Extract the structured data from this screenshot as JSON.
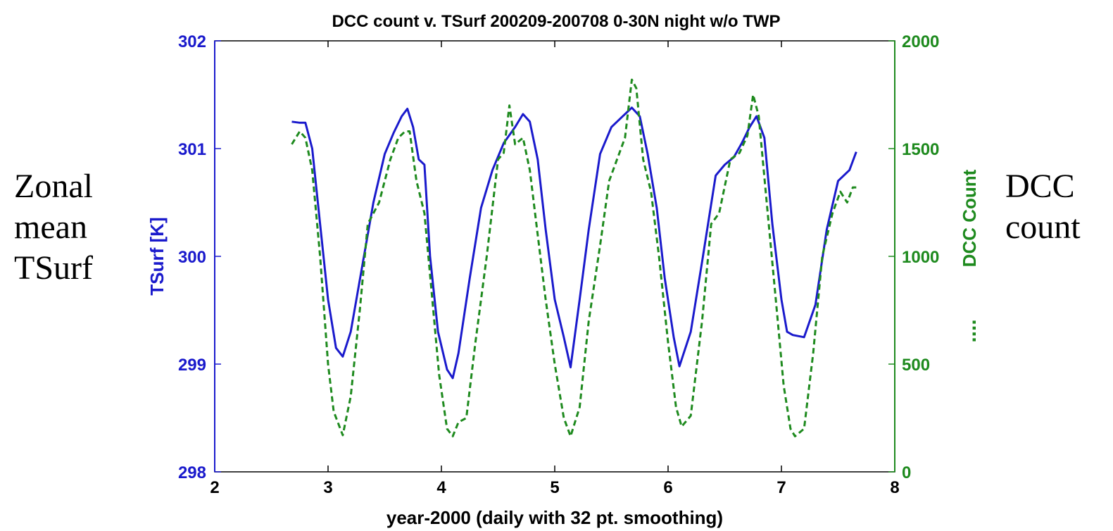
{
  "side_notes": {
    "left": [
      "Zonal",
      "mean",
      "TSurf"
    ],
    "right": [
      "DCC",
      "count"
    ]
  },
  "chart_data": {
    "type": "line",
    "title": "DCC count v. TSurf 200209-200708 0-30N night w/o TWP",
    "xlabel": "year-2000 (daily with 32 pt. smoothing)",
    "ylabel_left": "TSurf [K]",
    "ylabel_right": "DCC Count",
    "ylabel_right_marker": "....",
    "xlim": [
      2,
      8
    ],
    "ylim_left": [
      298,
      302
    ],
    "ylim_right": [
      0,
      2000
    ],
    "xticks": [
      2,
      3,
      4,
      5,
      6,
      7,
      8
    ],
    "yticks_left": [
      298,
      299,
      300,
      301,
      302
    ],
    "yticks_right": [
      0,
      500,
      1000,
      1500,
      2000
    ],
    "grid": false,
    "colors": {
      "tsurf": "#1a1acc",
      "dcc": "#1e8a1e",
      "left_axis": "#1a1acc",
      "right_axis": "#1e8a1e"
    },
    "series": [
      {
        "axis": "left",
        "style": "solid",
        "x": [
          2.68,
          2.75,
          2.8,
          2.86,
          2.93,
          3.0,
          3.07,
          3.13,
          3.2,
          3.3,
          3.4,
          3.5,
          3.58,
          3.65,
          3.7,
          3.75,
          3.8,
          3.85,
          3.9,
          3.97,
          4.05,
          4.1,
          4.15,
          4.25,
          4.35,
          4.45,
          4.55,
          4.65,
          4.72,
          4.78,
          4.85,
          4.92,
          5.0,
          5.08,
          5.14,
          5.22,
          5.3,
          5.4,
          5.5,
          5.6,
          5.68,
          5.75,
          5.82,
          5.9,
          5.97,
          6.05,
          6.1,
          6.2,
          6.3,
          6.42,
          6.5,
          6.58,
          6.65,
          6.72,
          6.78,
          6.85,
          6.92,
          7.0,
          7.05,
          7.1,
          7.2,
          7.3,
          7.4,
          7.5,
          7.6,
          7.66
        ],
        "values": [
          301.25,
          301.24,
          301.24,
          301.0,
          300.3,
          299.6,
          299.15,
          299.07,
          299.3,
          299.9,
          300.5,
          300.95,
          301.15,
          301.3,
          301.37,
          301.2,
          300.9,
          300.85,
          300.0,
          299.3,
          298.95,
          298.87,
          299.1,
          299.8,
          300.45,
          300.8,
          301.05,
          301.2,
          301.32,
          301.25,
          300.9,
          300.25,
          299.6,
          299.25,
          298.97,
          299.6,
          300.25,
          300.95,
          301.2,
          301.3,
          301.38,
          301.3,
          300.95,
          300.45,
          299.8,
          299.25,
          298.98,
          299.3,
          299.95,
          300.75,
          300.85,
          300.92,
          301.05,
          301.2,
          301.3,
          301.1,
          300.3,
          299.6,
          299.3,
          299.27,
          299.25,
          299.55,
          300.25,
          300.7,
          300.8,
          300.97
        ]
      },
      {
        "axis": "right",
        "style": "dashed",
        "x": [
          2.68,
          2.75,
          2.8,
          2.86,
          2.93,
          3.0,
          3.05,
          3.13,
          3.2,
          3.28,
          3.35,
          3.45,
          3.55,
          3.62,
          3.68,
          3.72,
          3.78,
          3.85,
          3.92,
          3.98,
          4.05,
          4.1,
          4.15,
          4.22,
          4.3,
          4.4,
          4.5,
          4.55,
          4.6,
          4.65,
          4.72,
          4.78,
          4.85,
          4.92,
          5.0,
          5.08,
          5.14,
          5.22,
          5.3,
          5.4,
          5.48,
          5.55,
          5.62,
          5.68,
          5.72,
          5.78,
          5.85,
          5.92,
          6.0,
          6.07,
          6.12,
          6.2,
          6.3,
          6.38,
          6.45,
          6.55,
          6.63,
          6.7,
          6.75,
          6.8,
          6.87,
          6.95,
          7.02,
          7.08,
          7.12,
          7.2,
          7.28,
          7.36,
          7.45,
          7.52,
          7.58,
          7.63,
          7.66
        ],
        "values": [
          1520,
          1580,
          1550,
          1400,
          1000,
          500,
          280,
          170,
          350,
          750,
          1150,
          1250,
          1450,
          1550,
          1580,
          1580,
          1350,
          1200,
          800,
          450,
          200,
          165,
          230,
          250,
          600,
          1000,
          1450,
          1480,
          1700,
          1520,
          1550,
          1400,
          1100,
          800,
          500,
          250,
          165,
          300,
          700,
          1050,
          1350,
          1450,
          1550,
          1820,
          1780,
          1450,
          1300,
          1000,
          600,
          300,
          210,
          260,
          700,
          1150,
          1200,
          1450,
          1480,
          1560,
          1750,
          1650,
          1250,
          800,
          400,
          200,
          165,
          200,
          550,
          1000,
          1200,
          1300,
          1250,
          1320,
          1320
        ]
      }
    ]
  }
}
